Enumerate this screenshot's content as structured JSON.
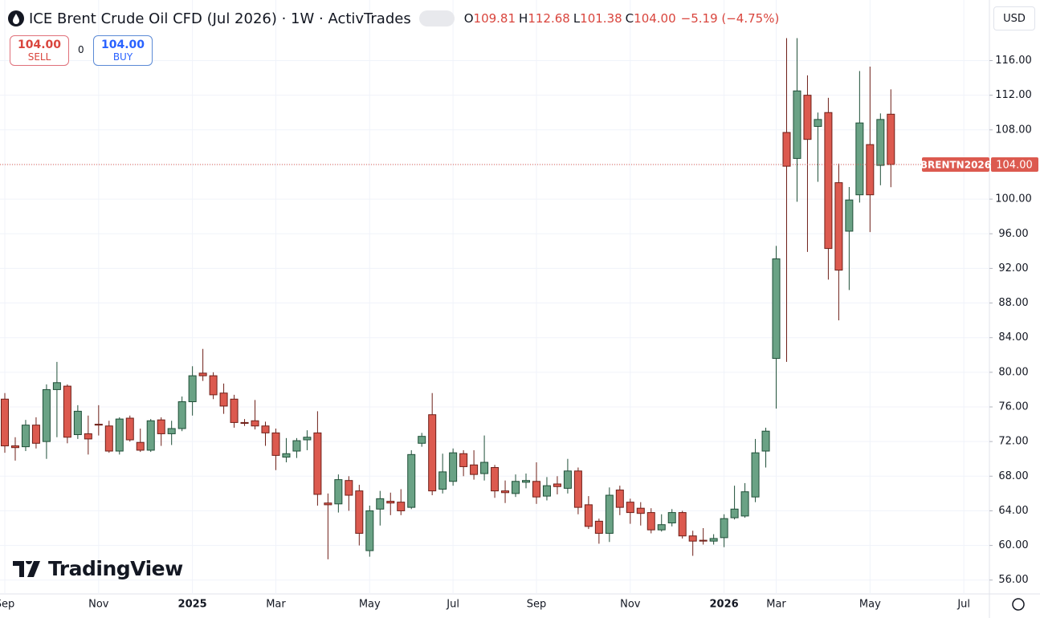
{
  "chart_data": {
    "type": "candlestick",
    "title": "ICE Brent Crude Oil CFD (Jul 2026) · 1W · ActivTrades",
    "ohlc_legend": [
      {
        "key": "O",
        "value": "109.81"
      },
      {
        "key": "H",
        "value": "112.68"
      },
      {
        "key": "L",
        "value": "101.38"
      },
      {
        "key": "C",
        "value": "104.00"
      }
    ],
    "change": "−5.19 (−4.75%)",
    "sell": {
      "price": "104.00",
      "label": "SELL"
    },
    "spread": "0",
    "buy": {
      "price": "104.00",
      "label": "BUY"
    },
    "currency": "USD",
    "brand": "TradingView",
    "last_price": {
      "value": 104,
      "label": "104.00",
      "symbol": "BRENTN2026"
    },
    "up_color": "#6aa285",
    "down_color": "#dc5a4f",
    "grid": true,
    "categories": [
      "Sep",
      null,
      null,
      null,
      null,
      null,
      null,
      null,
      null,
      "Nov",
      null,
      null,
      null,
      null,
      null,
      null,
      null,
      null,
      "2025",
      null,
      null,
      null,
      null,
      null,
      null,
      null,
      "Mar",
      null,
      null,
      null,
      null,
      null,
      null,
      null,
      null,
      "May",
      null,
      null,
      null,
      null,
      null,
      null,
      null,
      "Jul",
      null,
      null,
      null,
      null,
      null,
      null,
      null,
      "Sep",
      null,
      null,
      null,
      null,
      null,
      null,
      null,
      null,
      "Nov",
      null,
      null,
      null,
      null,
      null,
      null,
      null,
      null,
      "2026",
      null,
      null,
      null,
      null,
      "Mar",
      null,
      null,
      null,
      null,
      null,
      null,
      null,
      null,
      "May",
      null,
      null,
      null,
      null,
      null,
      null,
      null,
      null,
      "Jul",
      null,
      null
    ],
    "open": [
      76.9,
      71.5,
      71.4,
      73.9,
      72.0,
      78.0,
      78.4,
      72.8,
      72.9,
      74.0,
      73.8,
      70.9,
      74.7,
      71.9,
      71.0,
      74.5,
      72.9,
      73.5,
      76.6,
      79.9,
      79.6,
      77.6,
      76.9,
      74.2,
      74.4,
      73.8,
      73.0,
      70.2,
      70.9,
      72.2,
      73.0,
      64.9,
      64.8,
      67.5,
      66.3,
      59.4,
      64.2,
      65.1,
      65.0,
      64.4,
      71.8,
      75.1,
      66.5,
      67.4,
      70.6,
      69.3,
      68.3,
      69.0,
      66.3,
      66.0,
      67.3,
      67.4,
      65.7,
      67.1,
      66.6,
      68.6,
      64.7,
      62.8,
      61.4,
      66.4,
      65.0,
      64.3,
      63.8,
      61.8,
      62.6,
      63.8,
      61.1,
      60.6,
      60.5,
      60.9,
      63.2,
      63.4,
      65.6,
      70.9,
      81.6,
      107.7,
      104.7,
      112.0,
      108.4,
      110.0,
      101.9,
      96.3,
      100.5,
      106.3,
      103.9,
      109.81,
      null,
      null,
      null,
      null,
      null,
      null,
      null,
      null,
      null
    ],
    "high": [
      77.6,
      72.5,
      74.5,
      74.8,
      78.6,
      81.2,
      78.6,
      76.2,
      75.0,
      76.2,
      74.4,
      74.8,
      75.0,
      73.5,
      74.6,
      74.8,
      74.4,
      77.2,
      80.7,
      82.7,
      80.0,
      78.7,
      77.4,
      74.6,
      76.8,
      74.3,
      73.5,
      72.4,
      72.4,
      73.3,
      75.5,
      66.0,
      68.2,
      68.0,
      67.0,
      64.6,
      66.3,
      66.1,
      66.5,
      71.0,
      73.0,
      77.6,
      70.6,
      71.2,
      71.0,
      71.0,
      72.7,
      69.3,
      67.5,
      68.2,
      68.3,
      69.6,
      67.9,
      68.0,
      70.0,
      69.0,
      65.7,
      63.1,
      66.7,
      66.9,
      65.4,
      65.0,
      64.3,
      63.6,
      64.2,
      64.0,
      61.7,
      62.0,
      61.3,
      63.6,
      66.9,
      67.2,
      72.3,
      73.6,
      94.6,
      118.6,
      118.6,
      114.3,
      110.0,
      111.7,
      104.1,
      101.4,
      114.8,
      115.3,
      109.9,
      112.68,
      null,
      null,
      null,
      null,
      null,
      null,
      null,
      null,
      null
    ],
    "low": [
      70.7,
      69.8,
      70.9,
      71.2,
      70.0,
      72.5,
      71.8,
      72.3,
      70.5,
      72.7,
      70.7,
      70.5,
      72.0,
      70.8,
      70.8,
      71.5,
      71.6,
      73.2,
      75.0,
      79.0,
      76.9,
      75.2,
      73.6,
      73.8,
      73.4,
      71.5,
      68.7,
      69.6,
      70.1,
      71.0,
      64.6,
      58.4,
      63.8,
      64.0,
      60.0,
      58.7,
      62.3,
      63.5,
      63.5,
      64.2,
      71.4,
      65.8,
      66.0,
      66.9,
      68.0,
      67.6,
      67.5,
      65.5,
      64.9,
      65.6,
      66.6,
      64.8,
      65.2,
      65.9,
      66.0,
      63.6,
      61.9,
      60.2,
      60.4,
      63.5,
      62.5,
      62.3,
      61.4,
      61.6,
      62.2,
      60.8,
      58.8,
      60.1,
      60.1,
      59.8,
      63.0,
      63.2,
      65.0,
      69.0,
      75.8,
      81.2,
      99.7,
      93.9,
      102.0,
      90.7,
      86.0,
      89.5,
      99.6,
      96.2,
      101.6,
      101.38,
      null,
      null,
      null,
      null,
      null,
      null,
      null,
      null,
      null
    ],
    "close": [
      71.5,
      71.3,
      73.9,
      71.8,
      78.0,
      78.8,
      72.5,
      75.5,
      72.3,
      73.9,
      70.9,
      74.6,
      72.2,
      71.0,
      74.4,
      72.9,
      73.5,
      76.6,
      79.6,
      79.6,
      77.4,
      76.1,
      74.2,
      74.1,
      73.8,
      73.0,
      70.4,
      70.6,
      72.1,
      72.5,
      65.9,
      64.7,
      67.6,
      65.8,
      61.4,
      64.0,
      65.4,
      64.9,
      64.0,
      70.5,
      72.6,
      66.3,
      68.5,
      70.7,
      69.1,
      68.2,
      69.6,
      66.3,
      66.1,
      67.4,
      67.5,
      65.6,
      66.9,
      66.8,
      68.6,
      64.4,
      62.2,
      61.4,
      65.8,
      64.4,
      63.8,
      63.7,
      61.8,
      62.4,
      63.8,
      61.1,
      60.5,
      60.5,
      60.8,
      63.1,
      64.2,
      66.2,
      70.7,
      73.2,
      93.1,
      103.8,
      112.5,
      106.9,
      109.2,
      94.3,
      91.8,
      99.9,
      108.8,
      100.5,
      109.2,
      104.0,
      null,
      null,
      null,
      null,
      null,
      null,
      null,
      null,
      null
    ],
    "ylim": [
      54.4,
      123.0
    ],
    "yticks": [
      {
        "value": 56,
        "label": "56.00"
      },
      {
        "value": 60,
        "label": "60.00"
      },
      {
        "value": 64,
        "label": "64.00"
      },
      {
        "value": 68,
        "label": "68.00"
      },
      {
        "value": 72,
        "label": "72.00"
      },
      {
        "value": 76,
        "label": "76.00"
      },
      {
        "value": 80,
        "label": "80.00"
      },
      {
        "value": 84,
        "label": "84.00"
      },
      {
        "value": 88,
        "label": "88.00"
      },
      {
        "value": 92,
        "label": "92.00"
      },
      {
        "value": 96,
        "label": "96.00"
      },
      {
        "value": 100,
        "label": "100.00"
      },
      {
        "value": 104,
        "label": "104.00"
      },
      {
        "value": 108,
        "label": "108.00"
      },
      {
        "value": 112,
        "label": "112.00"
      },
      {
        "value": 116,
        "label": "116.00"
      }
    ]
  }
}
